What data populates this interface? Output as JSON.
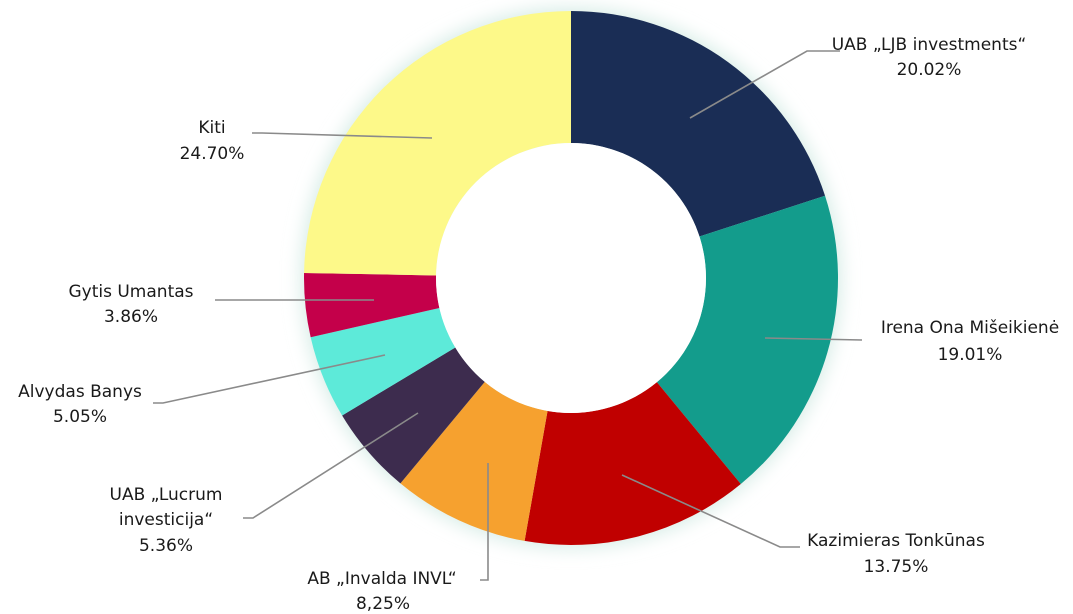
{
  "chart_data": {
    "type": "pie",
    "donut": true,
    "slices": [
      {
        "name": "UAB „LJB investments“",
        "value_label": "20.02%",
        "value": 20.02,
        "color": "#1a2d55"
      },
      {
        "name": "Irena Ona Mišeikienė",
        "value_label": "19.01%",
        "value": 19.01,
        "color": "#139c8c"
      },
      {
        "name": "Kazimieras Tonkūnas",
        "value_label": "13.75%",
        "value": 13.75,
        "color": "#c00000"
      },
      {
        "name": "AB „Invalda INVL“",
        "value_label": "8,25%",
        "value": 8.25,
        "color": "#f6a12f"
      },
      {
        "name": "UAB „Lucrum investicija“",
        "value_label": "5.36%",
        "value": 5.36,
        "color": "#3d2c4e"
      },
      {
        "name": "Alvydas Banys",
        "value_label": "5.05%",
        "value": 5.05,
        "color": "#5dead9"
      },
      {
        "name": "Gytis Umantas",
        "value_label": "3.86%",
        "value": 3.86,
        "color": "#c4004a"
      },
      {
        "name": "Kiti",
        "value_label": "24.70%",
        "value": 24.7,
        "color": "#fdf989"
      }
    ]
  }
}
